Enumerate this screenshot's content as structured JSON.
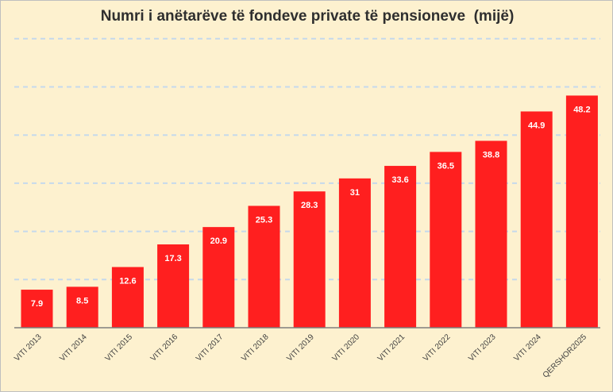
{
  "chart_data": {
    "type": "bar",
    "title": "Numri i anëtarëve të fondeve private të pensioneve  (mijë)",
    "categories": [
      "VITI 2013",
      "VITI 2014",
      "VITI 2015",
      "VITI 2016",
      "VITI 2017",
      "VITI 2018",
      "VITI 2019",
      "VITI 2020",
      "VITI 2021",
      "VITI 2022",
      "VITI 2023",
      "VITI 2024",
      "QERSHOR2025"
    ],
    "values": [
      7.9,
      8.5,
      12.6,
      17.3,
      20.9,
      25.3,
      28.3,
      31,
      33.6,
      36.5,
      38.8,
      44.9,
      48.2
    ],
    "ylim": [
      0,
      60
    ],
    "grid": true,
    "colors": {
      "bar": "#ff1f1f",
      "background": "#fdf1cf",
      "grid": "#c5d9ec"
    }
  }
}
